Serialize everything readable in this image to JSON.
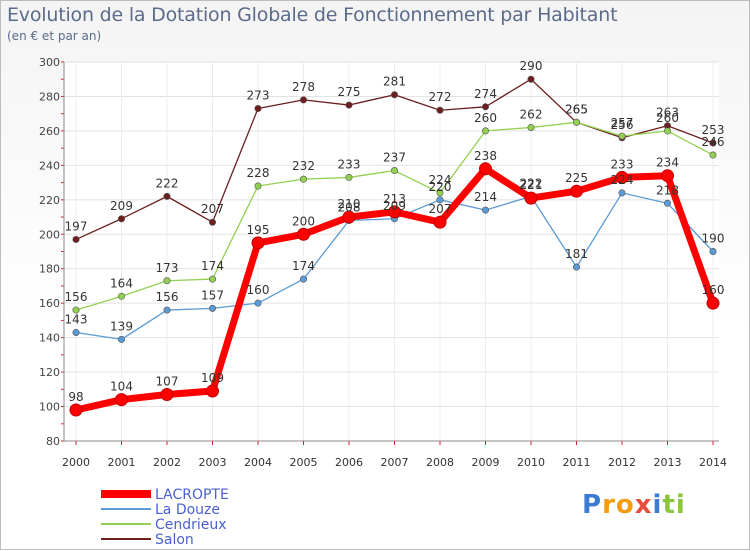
{
  "chart_data": {
    "type": "line",
    "title": "Evolution de la Dotation Globale de Fonctionnement par Habitant",
    "subtitle": "(en € et par an)",
    "categories": [
      "2000",
      "2001",
      "2002",
      "2003",
      "2004",
      "2005",
      "2006",
      "2007",
      "2008",
      "2009",
      "2010",
      "2011",
      "2012",
      "2013",
      "2014"
    ],
    "ylim": [
      80,
      300
    ],
    "yticks": [
      80,
      100,
      120,
      140,
      160,
      180,
      200,
      220,
      240,
      260,
      280,
      300
    ],
    "grid": true,
    "series": [
      {
        "name": "LACROPTE",
        "color": "#ff0000",
        "values": [
          98,
          104,
          107,
          109,
          195,
          200,
          210,
          213,
          207,
          238,
          221,
          225,
          233,
          234,
          160
        ]
      },
      {
        "name": "La Douze",
        "color": "#5b9bd5",
        "values": [
          143,
          139,
          156,
          157,
          160,
          174,
          208,
          209,
          220,
          214,
          222,
          181,
          224,
          218,
          190
        ]
      },
      {
        "name": "Cendrieux",
        "color": "#92d050",
        "values": [
          156,
          164,
          173,
          174,
          228,
          232,
          233,
          237,
          224,
          260,
          262,
          265,
          257,
          260,
          246
        ]
      },
      {
        "name": "Salon",
        "color": "#6b1f1f",
        "values": [
          197,
          209,
          222,
          207,
          273,
          278,
          275,
          281,
          272,
          274,
          290,
          265,
          256,
          263,
          253
        ]
      }
    ]
  },
  "logo": {
    "text": "Proxiti",
    "letters": [
      "P",
      "r",
      "o",
      "x",
      "i",
      "t",
      "i"
    ],
    "colors": [
      "#3a7bd5",
      "#f39c12",
      "#f39c12",
      "#e74c3c",
      "#3a7bd5",
      "#8cc63f",
      "#8cc63f"
    ]
  }
}
